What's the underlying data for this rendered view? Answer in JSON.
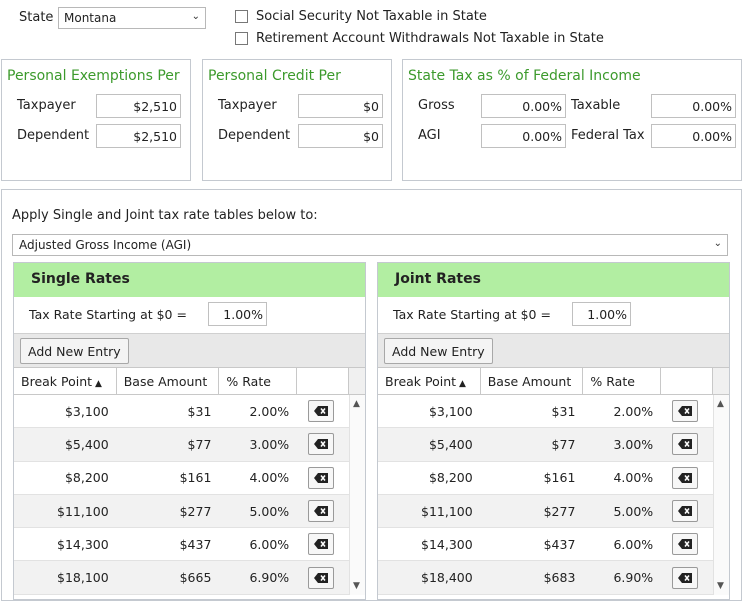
{
  "top": {
    "state_label": "State",
    "state_value": "Montana",
    "chk_social_security": "Social Security Not Taxable in State",
    "chk_retirement": "Retirement Account Withdrawals Not Taxable in State"
  },
  "exemptions": {
    "title": "Personal Exemptions Per",
    "taxpayer_label": "Taxpayer",
    "taxpayer_value": "$2,510",
    "dependent_label": "Dependent",
    "dependent_value": "$2,510"
  },
  "credit": {
    "title": "Personal Credit Per",
    "taxpayer_label": "Taxpayer",
    "taxpayer_value": "$0",
    "dependent_label": "Dependent",
    "dependent_value": "$0"
  },
  "state_tax": {
    "title": "State Tax as % of Federal Income",
    "gross_label": "Gross",
    "gross_value": "0.00%",
    "taxable_label": "Taxable",
    "taxable_value": "0.00%",
    "agi_label": "AGI",
    "agi_value": "0.00%",
    "federal_label": "Federal Tax",
    "federal_value": "0.00%"
  },
  "apply": {
    "label": "Apply Single and Joint tax rate tables below to:",
    "selected": "Adjusted Gross Income (AGI)"
  },
  "single": {
    "title": "Single Rates",
    "start_label": "Tax Rate Starting at $0 =",
    "start_value": "1.00%",
    "add_label": "Add New Entry",
    "col_break": "Break Point",
    "col_base": "Base Amount",
    "col_rate": "% Rate",
    "rows": [
      {
        "break": "$3,100",
        "base": "$31",
        "rate": "2.00%"
      },
      {
        "break": "$5,400",
        "base": "$77",
        "rate": "3.00%"
      },
      {
        "break": "$8,200",
        "base": "$161",
        "rate": "4.00%"
      },
      {
        "break": "$11,100",
        "base": "$277",
        "rate": "5.00%"
      },
      {
        "break": "$14,300",
        "base": "$437",
        "rate": "6.00%"
      },
      {
        "break": "$18,100",
        "base": "$665",
        "rate": "6.90%"
      }
    ]
  },
  "joint": {
    "title": "Joint Rates",
    "start_label": "Tax Rate Starting at $0 =",
    "start_value": "1.00%",
    "add_label": "Add New Entry",
    "col_break": "Break Point",
    "col_base": "Base Amount",
    "col_rate": "% Rate",
    "rows": [
      {
        "break": "$3,100",
        "base": "$31",
        "rate": "2.00%"
      },
      {
        "break": "$5,400",
        "base": "$77",
        "rate": "3.00%"
      },
      {
        "break": "$8,200",
        "base": "$161",
        "rate": "4.00%"
      },
      {
        "break": "$11,100",
        "base": "$277",
        "rate": "5.00%"
      },
      {
        "break": "$14,300",
        "base": "$437",
        "rate": "6.00%"
      },
      {
        "break": "$18,400",
        "base": "$683",
        "rate": "6.90%"
      }
    ]
  },
  "colors": {
    "accent_green": "#3c9a2c",
    "header_green": "#b2eea2"
  }
}
